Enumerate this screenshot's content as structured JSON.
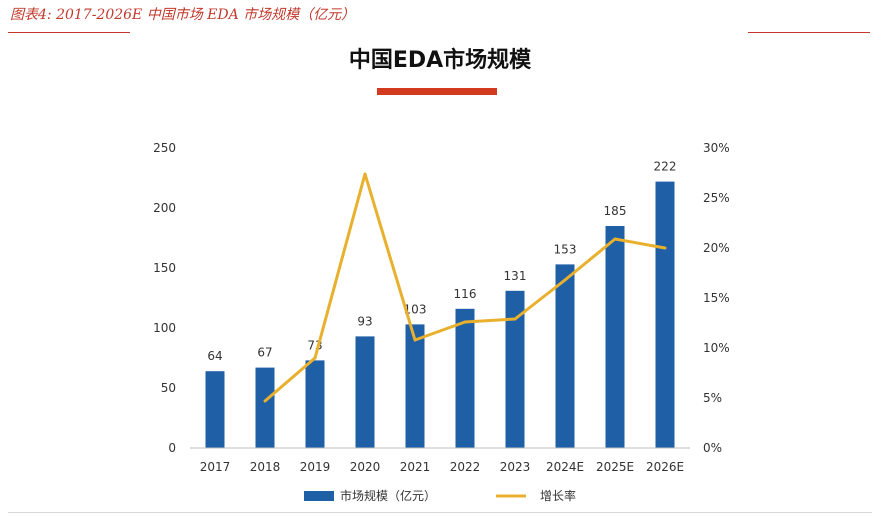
{
  "caption": "图表4:  2017-2026E 中国市场 EDA 市场规模（亿元）",
  "colors": {
    "bar": "#1f5fa6",
    "line": "#e8b02c",
    "accent": "#d43a1f",
    "rule": "#c0392b"
  },
  "chart_data": {
    "type": "bar",
    "title": "中国EDA市场规模",
    "categories": [
      "2017",
      "2018",
      "2019",
      "2020",
      "2021",
      "2022",
      "2023",
      "2024E",
      "2025E",
      "2026E"
    ],
    "y_ticks": [
      "0",
      "50",
      "100",
      "150",
      "200",
      "250"
    ],
    "y2_ticks": [
      "0%",
      "5%",
      "10%",
      "15%",
      "20%",
      "25%",
      "30%"
    ],
    "ylim": [
      0,
      250
    ],
    "y2lim": [
      0,
      30
    ],
    "series": [
      {
        "name": "市场规模（亿元）",
        "type": "bar",
        "axis": "left",
        "values": [
          64,
          67,
          73,
          93,
          103,
          116,
          131,
          153,
          185,
          222
        ],
        "labels": [
          "64",
          "67",
          "73",
          "93",
          "103",
          "116",
          "131",
          "153",
          "185",
          "222"
        ]
      },
      {
        "name": "增长率",
        "type": "line",
        "axis": "right",
        "values": [
          null,
          4.7,
          9.0,
          27.4,
          10.8,
          12.6,
          12.9,
          16.8,
          20.9,
          20.0
        ]
      }
    ],
    "legend_position": "bottom",
    "grid": false
  }
}
